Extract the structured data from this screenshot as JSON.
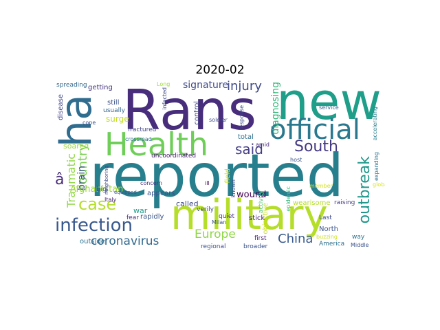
{
  "title": "2020-02",
  "palette": {
    "purple": "#46327e",
    "teal": "#277f8e",
    "green": "#4ac16d",
    "lime": "#a0da39",
    "blue": "#365c8d",
    "yellow": "#fde725"
  },
  "words": [
    {
      "text": "Rans",
      "color": "#472d7b"
    },
    {
      "text": "new",
      "color": "#1f9e89"
    },
    {
      "text": "reported",
      "color": "#277f8e"
    },
    {
      "text": "ha",
      "color": "#2f6c8e"
    },
    {
      "text": "Health",
      "color": "#6ece58"
    },
    {
      "text": "military",
      "color": "#b5de2b"
    },
    {
      "text": "official",
      "color": "#2a788e"
    },
    {
      "text": "South",
      "color": "#443983"
    },
    {
      "text": "infection",
      "color": "#38588c"
    },
    {
      "text": "case",
      "color": "#b5de2b"
    },
    {
      "text": "country",
      "color": "#7ad151"
    },
    {
      "text": "outbreak",
      "color": "#1f988b"
    },
    {
      "text": "injury",
      "color": "#3e4a89"
    },
    {
      "text": "said",
      "color": "#433e85"
    },
    {
      "text": "China",
      "color": "#38598c"
    },
    {
      "text": "Europe",
      "color": "#8fd744"
    },
    {
      "text": "coronavirus",
      "color": "#31688e"
    },
    {
      "text": "Traumatic",
      "color": "#8fd744"
    },
    {
      "text": "â",
      "color": "#472c7a"
    },
    {
      "text": "brain",
      "color": "#3b518b"
    },
    {
      "text": "signature",
      "color": "#3e4989"
    },
    {
      "text": "diagnosing",
      "color": "#35b779"
    },
    {
      "text": "Afghanistan",
      "color": "#a0da39"
    },
    {
      "text": "wound",
      "color": "#440154"
    },
    {
      "text": "surge",
      "color": "#c2df23"
    },
    {
      "text": "soared",
      "color": "#9bd93c"
    },
    {
      "text": "disease",
      "color": "#404688"
    },
    {
      "text": "getting",
      "color": "#46337e"
    },
    {
      "text": "still",
      "color": "#3a538b"
    },
    {
      "text": "usually",
      "color": "#32658e"
    },
    {
      "text": "cope",
      "color": "#3e4c8a"
    },
    {
      "text": "spreading",
      "color": "#31688e"
    },
    {
      "text": "fractured",
      "color": "#414487"
    },
    {
      "text": "big",
      "color": "#3f4889"
    },
    {
      "text": "Italy",
      "color": "#482374"
    },
    {
      "text": "appears",
      "color": "#3b528b"
    },
    {
      "text": "war",
      "color": "#1f9a8a"
    },
    {
      "text": "fear",
      "color": "#472f7d"
    },
    {
      "text": "rapidly",
      "color": "#39568c"
    },
    {
      "text": "outside",
      "color": "#2c728e"
    },
    {
      "text": "concern",
      "color": "#46307e"
    },
    {
      "text": "crossroad",
      "color": "#2e6e8e"
    },
    {
      "text": "called",
      "color": "#3e4989"
    },
    {
      "text": "verily",
      "color": "#3f4788"
    },
    {
      "text": "uncoordinated",
      "color": "#481a6c"
    },
    {
      "text": "total",
      "color": "#2e6f8e"
    },
    {
      "text": "field",
      "color": "#d2e21b"
    },
    {
      "text": "quiet",
      "color": "#463480"
    },
    {
      "text": "ill",
      "color": "#440154"
    },
    {
      "text": "control",
      "color": "#3f4788"
    },
    {
      "text": "Milan",
      "color": "#3e4c8a"
    },
    {
      "text": "stick",
      "color": "#482576"
    },
    {
      "text": "regional",
      "color": "#3d4e8a"
    },
    {
      "text": "amid",
      "color": "#482979"
    },
    {
      "text": "activity",
      "color": "#50c46a"
    },
    {
      "text": "objective",
      "color": "#c8e020"
    },
    {
      "text": "first",
      "color": "#481f70"
    },
    {
      "text": "broader",
      "color": "#3b528b"
    },
    {
      "text": "epidemic",
      "color": "#37b878"
    },
    {
      "text": "wearisome",
      "color": "#b5de2b"
    },
    {
      "text": "raising",
      "color": "#433e85"
    },
    {
      "text": "North",
      "color": "#3b528b"
    },
    {
      "text": "Last",
      "color": "#3e4a89"
    },
    {
      "text": "buzzing",
      "color": "#cde11d"
    },
    {
      "text": "America",
      "color": "#2d708e"
    },
    {
      "text": "Middle",
      "color": "#3b528b"
    },
    {
      "text": "way",
      "color": "#2c718e"
    },
    {
      "text": "service",
      "color": "#355f8d"
    },
    {
      "text": "accelerating",
      "color": "#277f8e"
    },
    {
      "text": "expanding",
      "color": "#2c728e"
    },
    {
      "text": "global",
      "color": "#d8e219"
    },
    {
      "text": "host",
      "color": "#3b528b"
    },
    {
      "text": "soldier",
      "color": "#3e4a89"
    },
    {
      "text": "Long",
      "color": "#9fda3a"
    },
    {
      "text": "infected",
      "color": "#3e4a89"
    },
    {
      "text": "neighboring",
      "color": "#3e4a89"
    },
    {
      "text": "equipped",
      "color": "#3b528b"
    },
    {
      "text": "known",
      "color": "#3e4a89"
    },
    {
      "text": "response",
      "color": "#3e4a89"
    },
    {
      "text": "member",
      "color": "#d5e21a"
    }
  ]
}
